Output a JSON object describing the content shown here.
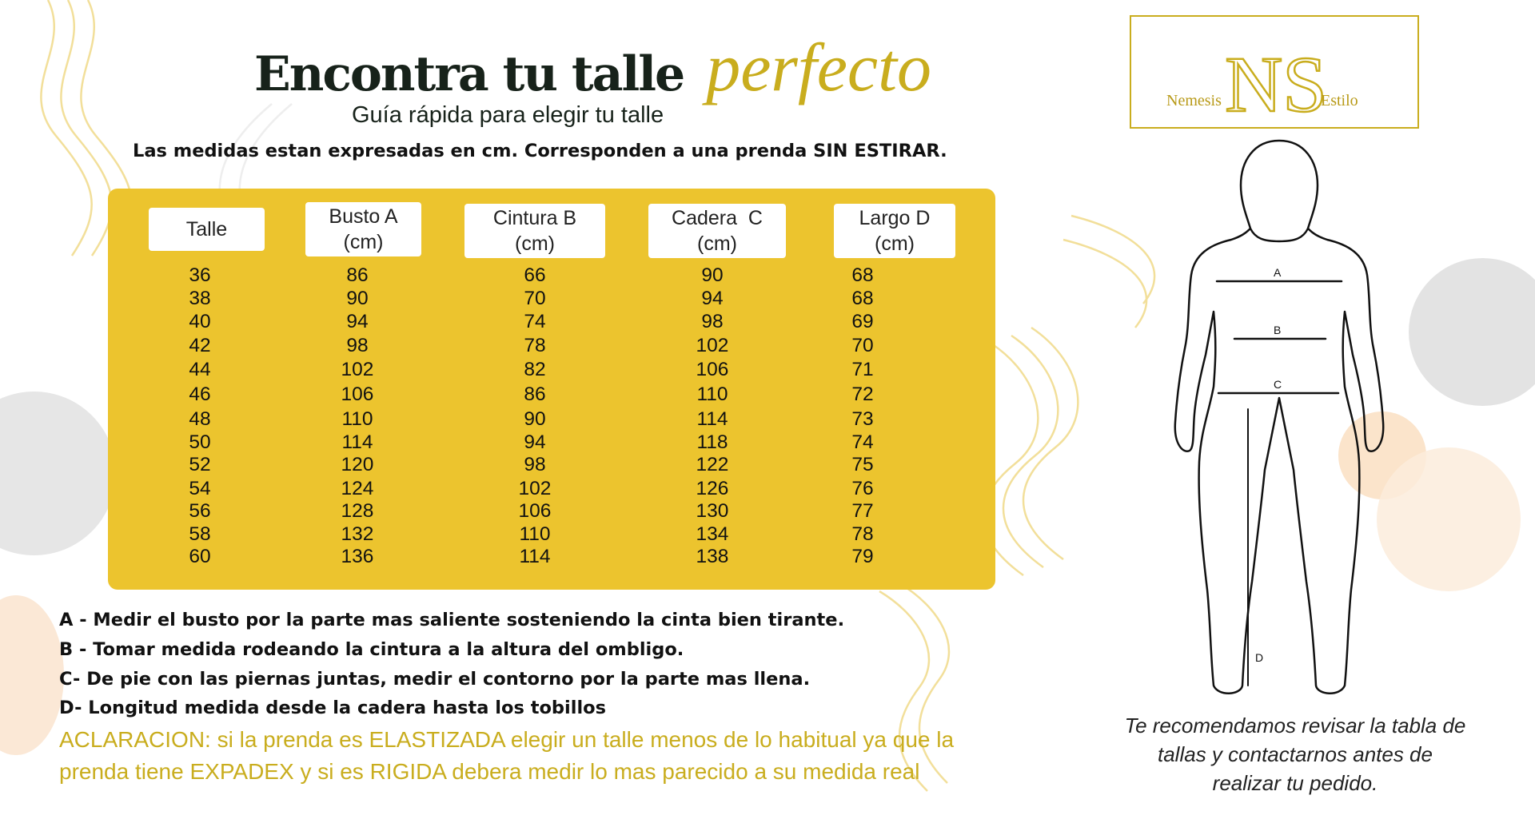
{
  "header": {
    "title_main": "Encontra tu talle",
    "title_accent": "perfecto",
    "subtitle": "Guía rápida para elegir tu talle",
    "note": "Las medidas estan expresadas en cm. Corresponden a una prenda SIN ESTIRAR."
  },
  "table": {
    "headers": [
      {
        "line1": "Talle",
        "line2": ""
      },
      {
        "line1": "Busto A",
        "line2": "(cm)"
      },
      {
        "line1": "Cintura B",
        "line2": "(cm)"
      },
      {
        "line1": "Cadera  C",
        "line2": "(cm)"
      },
      {
        "line1": "Largo D",
        "line2": "(cm)"
      }
    ],
    "rows": [
      [
        "36",
        "86",
        "66",
        "90",
        "68"
      ],
      [
        "38",
        "90",
        "70",
        "94",
        "68"
      ],
      [
        "40",
        "94",
        "74",
        "98",
        "69"
      ],
      [
        "42",
        "98",
        "78",
        "102",
        "70"
      ],
      [
        "44",
        "102",
        "82",
        "106",
        "71"
      ],
      [
        "46",
        "106",
        "86",
        "110",
        "72"
      ],
      [
        "48",
        "110",
        "90",
        "114",
        "73"
      ],
      [
        "50",
        "114",
        "94",
        "118",
        "74"
      ],
      [
        "52",
        "120",
        "98",
        "122",
        "75"
      ],
      [
        "54",
        "124",
        "102",
        "126",
        "76"
      ],
      [
        "56",
        "128",
        "106",
        "130",
        "77"
      ],
      [
        "58",
        "132",
        "110",
        "134",
        "78"
      ],
      [
        "60",
        "136",
        "114",
        "138",
        "79"
      ]
    ]
  },
  "instructions": [
    "A - Medir el busto por la parte mas saliente sosteniendo la cinta bien tirante.",
    "B - Tomar medida rodeando la cintura a la altura del ombligo.",
    "C- De pie con las piernas juntas, medir el contorno por la parte mas llena.",
    "D- Longitud medida desde la cadera hasta los tobillos"
  ],
  "clarification": [
    "ACLARACION: si la prenda es ELASTIZADA elegir un talle menos de lo habitual ya que la",
    "prenda tiene EXPADEX y si es RIGIDA debera medir lo mas parecido a su medida real"
  ],
  "logo": {
    "left_word": "Nemesis",
    "right_word": "Estilo",
    "monogram": "NS"
  },
  "figure_labels": {
    "a": "A",
    "b": "B",
    "c": "C",
    "d": "D"
  },
  "recommendation": [
    "Te recomendamos revisar la tabla de",
    "tallas y contactarnos antes de",
    "realizar tu pedido."
  ],
  "colors": {
    "accent_gold": "#c9ad1e",
    "table_yellow": "#ecc42e",
    "title_dark": "#17221a"
  }
}
